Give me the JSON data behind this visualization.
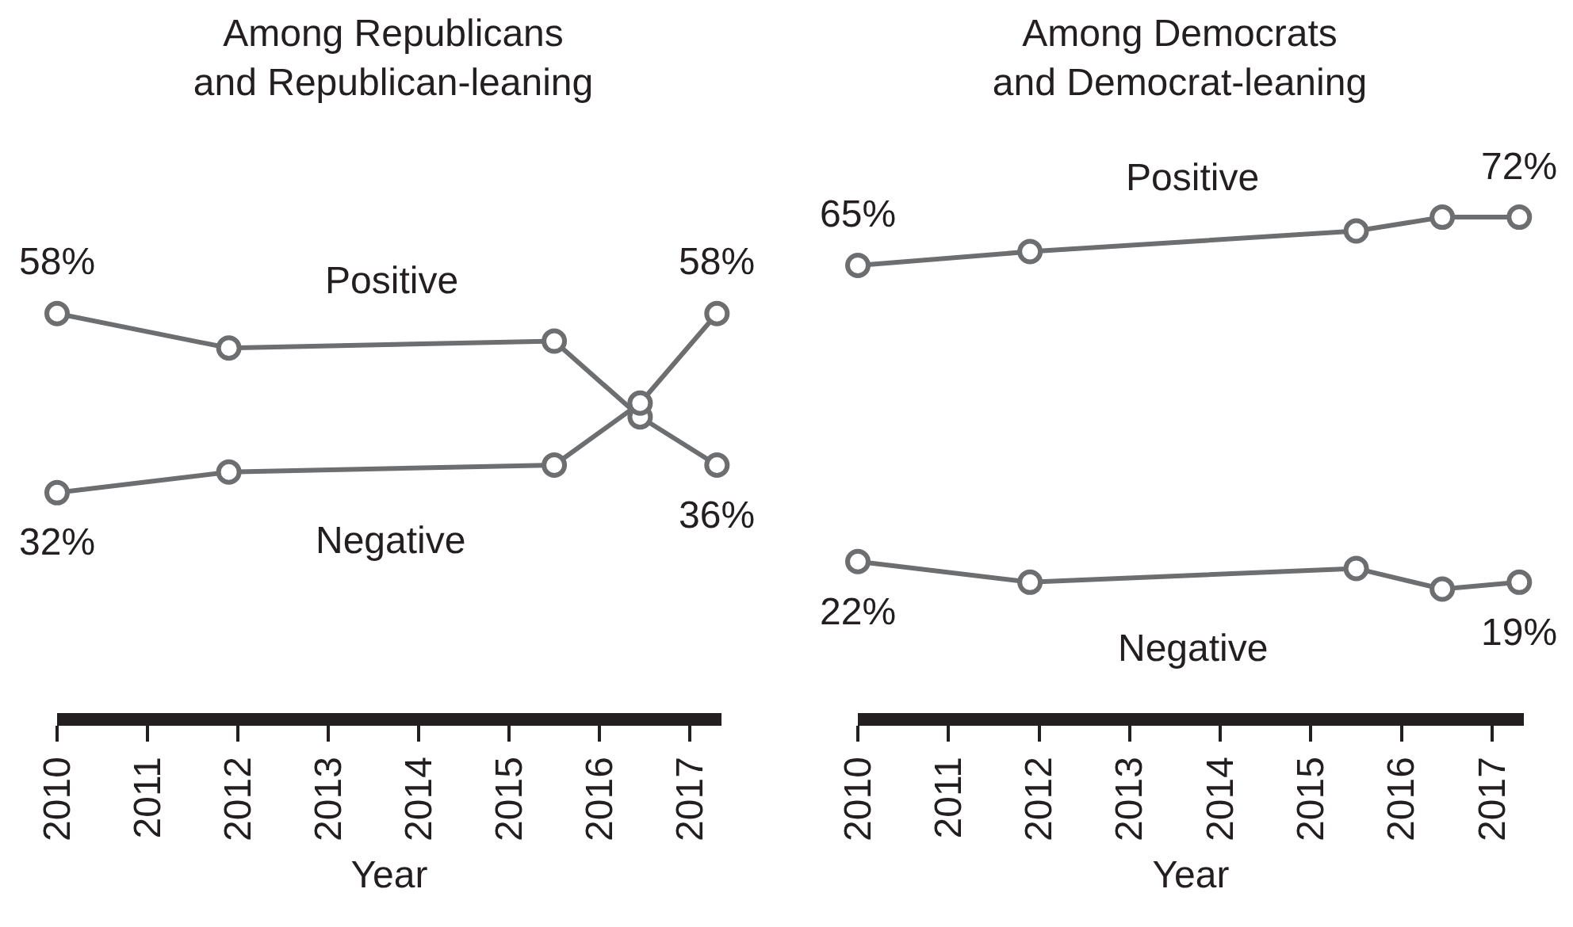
{
  "chart_data": [
    {
      "type": "line",
      "title": "Among Republicans\nand Republican-leaning",
      "xlabel": "Year",
      "x": [
        2010,
        2011.9,
        2015.5,
        2016.45,
        2017.3
      ],
      "xlim": [
        2010,
        2017.35
      ],
      "xticks": [
        2010,
        2011,
        2012,
        2013,
        2014,
        2015,
        2016,
        2017
      ],
      "tick_labels": "x",
      "marker": "circle",
      "line_style": "solid",
      "series": [
        {
          "name": "Positive",
          "color": "#6d6e70",
          "values": [
            58,
            53,
            54,
            43,
            36
          ],
          "value_labels": [
            "58%",
            null,
            null,
            null,
            "36%"
          ]
        },
        {
          "name": "Negative",
          "color": "#6d6e70",
          "values": [
            32,
            35,
            36,
            45,
            58
          ],
          "value_labels": [
            "32%",
            null,
            null,
            null,
            "58%"
          ]
        }
      ]
    },
    {
      "type": "line",
      "title": "Among Democrats\nand Democrat-leaning",
      "xlabel": "Year",
      "x": [
        2010,
        2011.9,
        2015.5,
        2016.45,
        2017.3
      ],
      "xlim": [
        2010,
        2017.35
      ],
      "xticks": [
        2010,
        2011,
        2012,
        2013,
        2014,
        2015,
        2016,
        2017
      ],
      "tick_labels": "x",
      "marker": "circle",
      "line_style": "solid",
      "series": [
        {
          "name": "Positive",
          "color": "#6d6e70",
          "values": [
            65,
            67,
            70,
            72,
            72
          ],
          "value_labels": [
            "65%",
            null,
            null,
            null,
            "72%"
          ]
        },
        {
          "name": "Negative",
          "color": "#6d6e70",
          "values": [
            22,
            19,
            21,
            18,
            19
          ],
          "value_labels": [
            "22%",
            null,
            null,
            null,
            "19%"
          ]
        }
      ]
    }
  ]
}
